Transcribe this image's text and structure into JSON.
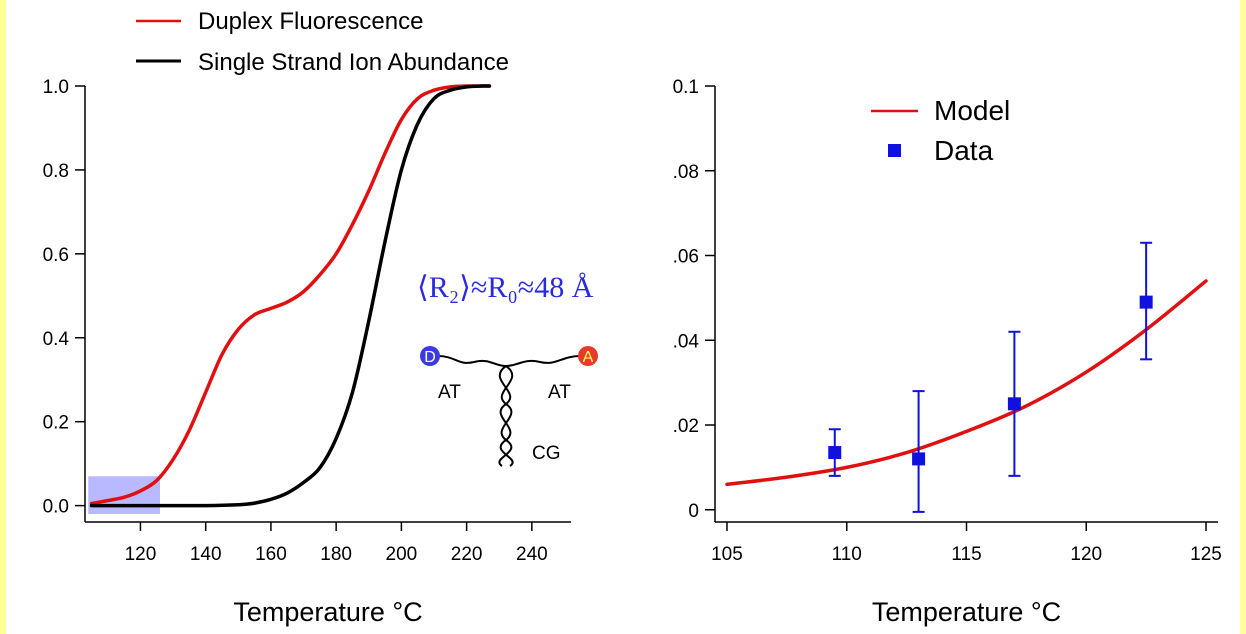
{
  "colors": {
    "background_border": "#ffff99",
    "fluorescence": "#e01010",
    "ion_abundance": "#000000",
    "model": "#e01010",
    "data": "#1010e0",
    "highlight": "#8080ff",
    "formula": "#2a2ae0",
    "donor": "#3a3ae0",
    "acceptor": "#e83a2a"
  },
  "chart_data": [
    {
      "type": "line",
      "xlabel": "Temperature °C",
      "ylabel": "",
      "xlim": [
        103,
        252
      ],
      "ylim": [
        -0.02,
        1.0
      ],
      "xticks": [
        120,
        140,
        160,
        180,
        200,
        220,
        240
      ],
      "yticks": [
        0.0,
        0.2,
        0.4,
        0.6,
        0.8,
        1.0
      ],
      "ytick_labels": [
        "0.0",
        "0.2",
        "0.4",
        "0.6",
        "0.8",
        "1.0"
      ],
      "legend_position": "top-left",
      "series": [
        {
          "name": "Duplex Fluorescence",
          "color": "#e01010",
          "x": [
            105,
            110,
            115,
            120,
            125,
            130,
            135,
            140,
            145,
            150,
            155,
            160,
            165,
            170,
            175,
            180,
            185,
            190,
            195,
            200,
            205,
            210,
            215,
            220,
            225,
            227
          ],
          "y": [
            0.005,
            0.012,
            0.02,
            0.035,
            0.06,
            0.11,
            0.18,
            0.27,
            0.36,
            0.42,
            0.455,
            0.47,
            0.485,
            0.51,
            0.55,
            0.6,
            0.67,
            0.75,
            0.84,
            0.92,
            0.97,
            0.99,
            0.998,
            1.0,
            1.0,
            1.0
          ]
        },
        {
          "name": "Single Strand Ion Abundance",
          "color": "#000000",
          "x": [
            105,
            120,
            140,
            150,
            155,
            160,
            165,
            170,
            175,
            180,
            185,
            190,
            195,
            200,
            205,
            210,
            215,
            220,
            225,
            227
          ],
          "y": [
            0.0,
            0.0,
            0.0,
            0.002,
            0.006,
            0.015,
            0.03,
            0.055,
            0.09,
            0.16,
            0.27,
            0.44,
            0.63,
            0.8,
            0.91,
            0.97,
            0.99,
            0.998,
            1.0,
            1.0
          ]
        }
      ],
      "highlight_region": {
        "x": [
          104,
          126
        ],
        "y": [
          -0.02,
          0.07
        ]
      },
      "annotation": {
        "formula": "⟨R₂⟩≈R₀≈48 Å",
        "donor_label": "D",
        "acceptor_label": "A",
        "labels": [
          "AT",
          "AT",
          "CG"
        ]
      }
    },
    {
      "type": "line",
      "xlabel": "Temperature °C",
      "ylabel": "",
      "xlim": [
        104.5,
        125.5
      ],
      "ylim": [
        -0.001,
        0.1
      ],
      "xticks": [
        105,
        110,
        115,
        120,
        125
      ],
      "yticks": [
        0,
        0.02,
        0.04,
        0.06,
        0.08,
        0.1
      ],
      "ytick_labels": [
        "0",
        ".02",
        ".04",
        ".06",
        ".08",
        "0.1"
      ],
      "legend_position": "top-center",
      "series": [
        {
          "name": "Model",
          "color": "#e01010",
          "x": [
            105,
            107.5,
            110,
            112.5,
            115,
            117.5,
            120,
            122.5,
            125
          ],
          "y": [
            0.006,
            0.0077,
            0.01,
            0.0135,
            0.0185,
            0.0245,
            0.0325,
            0.0425,
            0.054
          ]
        },
        {
          "name": "Data",
          "color": "#1010e0",
          "style": "scatter",
          "x": [
            109.5,
            113,
            117,
            122.5
          ],
          "y": [
            0.0135,
            0.012,
            0.025,
            0.049
          ],
          "err_low": [
            0.008,
            -0.0005,
            0.008,
            0.0355
          ],
          "err_high": [
            0.019,
            0.028,
            0.042,
            0.063
          ]
        }
      ]
    }
  ]
}
